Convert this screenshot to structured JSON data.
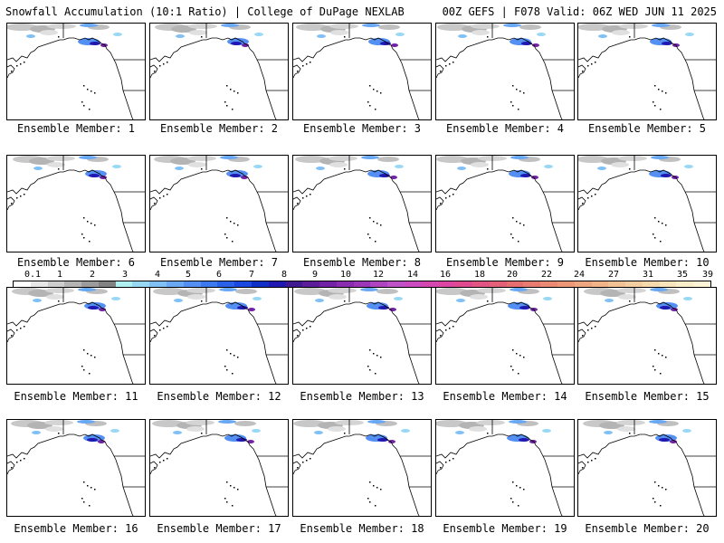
{
  "header": {
    "left": "Snowfall Accumulation (10:1 Ratio) | College of DuPage NEXLAB",
    "right": "00Z GEFS | F078 Valid: 06Z WED JUN 11 2025"
  },
  "members": [
    "Ensemble Member: 1",
    "Ensemble Member: 2",
    "Ensemble Member: 3",
    "Ensemble Member: 4",
    "Ensemble Member: 5",
    "Ensemble Member: 6",
    "Ensemble Member: 7",
    "Ensemble Member: 8",
    "Ensemble Member: 9",
    "Ensemble Member: 10",
    "Ensemble Member: 11",
    "Ensemble Member: 12",
    "Ensemble Member: 13",
    "Ensemble Member: 14",
    "Ensemble Member: 15",
    "Ensemble Member: 16",
    "Ensemble Member: 17",
    "Ensemble Member: 18",
    "Ensemble Member: 19",
    "Ensemble Member: 20"
  ],
  "colorbar": {
    "labels": [
      "0.1",
      "1",
      "2",
      "3",
      "4",
      "5",
      "6",
      "7",
      "8",
      "9",
      "10",
      "12",
      "14",
      "16",
      "18",
      "20",
      "22",
      "24",
      "27",
      "31",
      "35",
      "39"
    ],
    "colors": [
      "#ffffff",
      "#e6e6e6",
      "#cdcdcd",
      "#b4b4b4",
      "#9b9b9b",
      "#828282",
      "#b0f0f0",
      "#98d8f4",
      "#80c0f4",
      "#6aa8f4",
      "#5490f4",
      "#3c78f0",
      "#2860e8",
      "#1a48e0",
      "#1030c8",
      "#2018b0",
      "#401890",
      "#5a1c98",
      "#7222a4",
      "#8a2cb0",
      "#9c36b8",
      "#ae44c0",
      "#c052c8",
      "#cc4cc0",
      "#d448b0",
      "#dc46a0",
      "#e04890",
      "#e25484",
      "#e46078",
      "#e66e70",
      "#e87c70",
      "#ea8a74",
      "#ec9878",
      "#eea680",
      "#f0b488",
      "#f2c294",
      "#f4cea0",
      "#f6daae",
      "#f8e4bc",
      "#faeec8",
      "#fcf4d4"
    ]
  }
}
